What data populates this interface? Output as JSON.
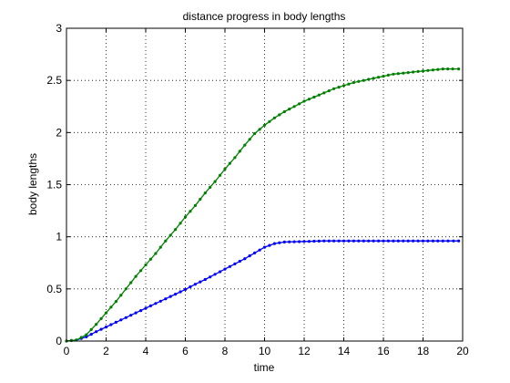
{
  "chart_data": {
    "type": "line",
    "title": "distance progress in body lengths",
    "xlabel": "time",
    "ylabel": "body lengths",
    "xlim": [
      0,
      20
    ],
    "ylim": [
      0,
      3
    ],
    "xticks": [
      0,
      2,
      4,
      6,
      8,
      10,
      12,
      14,
      16,
      18,
      20
    ],
    "yticks": [
      0,
      0.5,
      1,
      1.5,
      2,
      2.5,
      3
    ],
    "xtick_labels": [
      "0",
      "2",
      "4",
      "6",
      "8",
      "10",
      "12",
      "14",
      "16",
      "18",
      "20"
    ],
    "ytick_labels": [
      "0",
      "0.5",
      "1",
      "1.5",
      "2",
      "2.5",
      "3"
    ],
    "grid": true,
    "series": [
      {
        "color": "#0000ff",
        "marker": "dot",
        "x": [
          0,
          0.5,
          1,
          1.5,
          2,
          2.5,
          3,
          3.5,
          4,
          4.5,
          5,
          5.5,
          6,
          6.5,
          7,
          7.5,
          8,
          8.5,
          9,
          9.5,
          10,
          10.5,
          11,
          12,
          13,
          14,
          15,
          16,
          17,
          18,
          19,
          19.8
        ],
        "y": [
          0,
          0.01,
          0.04,
          0.09,
          0.135,
          0.18,
          0.225,
          0.27,
          0.315,
          0.36,
          0.405,
          0.45,
          0.495,
          0.545,
          0.59,
          0.64,
          0.69,
          0.74,
          0.79,
          0.845,
          0.9,
          0.935,
          0.95,
          0.955,
          0.96,
          0.96,
          0.96,
          0.96,
          0.96,
          0.96,
          0.96,
          0.96
        ]
      },
      {
        "color": "#008000",
        "marker": "dot",
        "x": [
          0,
          0.5,
          1,
          1.5,
          2,
          2.5,
          3,
          3.5,
          4,
          4.5,
          5,
          5.5,
          6,
          6.5,
          7,
          7.5,
          8,
          8.5,
          9,
          9.5,
          10,
          10.5,
          11,
          11.5,
          12,
          12.5,
          13,
          13.5,
          14,
          14.5,
          15,
          15.5,
          16,
          16.5,
          17,
          17.5,
          18,
          18.5,
          19,
          19.5,
          19.8
        ],
        "y": [
          0,
          0.01,
          0.06,
          0.16,
          0.27,
          0.38,
          0.5,
          0.62,
          0.73,
          0.84,
          0.96,
          1.07,
          1.19,
          1.3,
          1.42,
          1.53,
          1.65,
          1.76,
          1.88,
          1.99,
          2.07,
          2.14,
          2.2,
          2.25,
          2.3,
          2.34,
          2.38,
          2.42,
          2.45,
          2.48,
          2.5,
          2.52,
          2.54,
          2.56,
          2.57,
          2.58,
          2.59,
          2.6,
          2.61,
          2.61,
          2.61
        ]
      }
    ]
  }
}
